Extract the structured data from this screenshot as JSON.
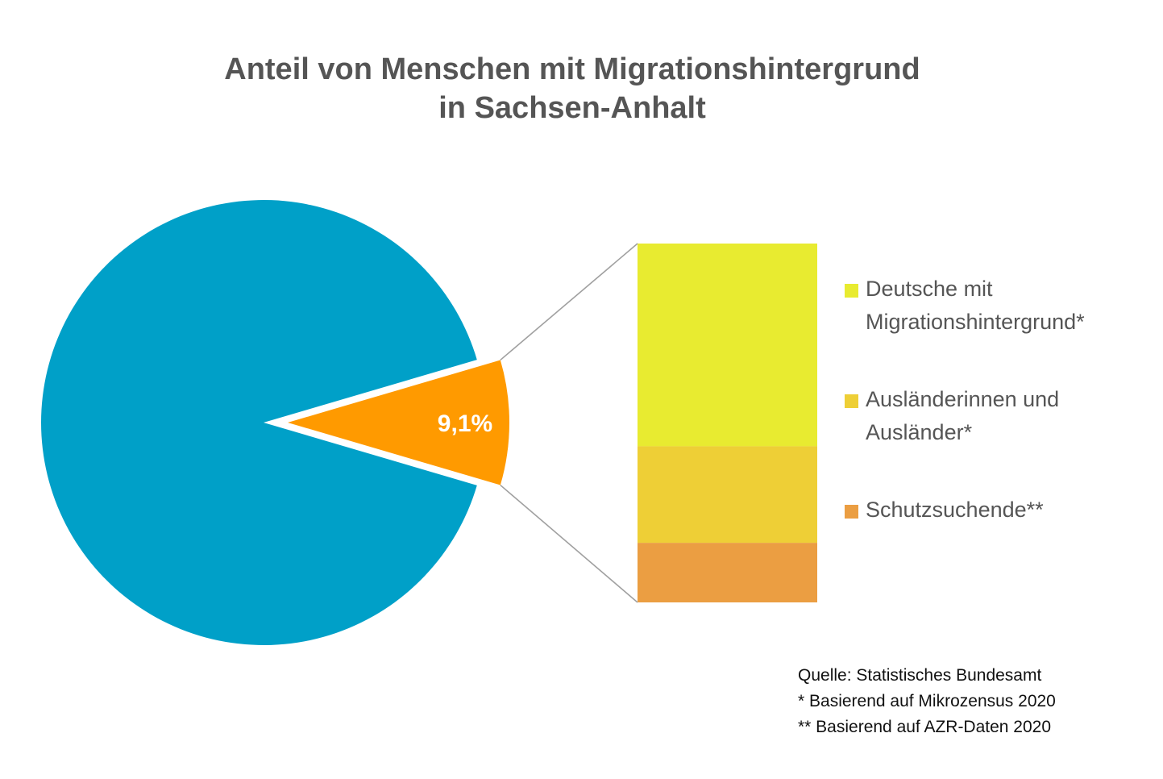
{
  "title": {
    "line1": "Anteil von Menschen mit Migrationshintergrund",
    "line2": "in Sachsen-Anhalt"
  },
  "chart_data": [
    {
      "type": "pie",
      "slices": [
        {
          "label": "",
          "value": 90.9,
          "color": "#00a0c8"
        },
        {
          "label": "9,1%",
          "value": 9.1,
          "color": "#ff9a00",
          "exploded": true
        }
      ],
      "data_label_color": "#ffffff"
    },
    {
      "type": "bar",
      "stacked": true,
      "series": [
        {
          "name": "Deutsche mit Migrationshintergrund*",
          "value": 56.5,
          "color": "#e8eb30"
        },
        {
          "name": "Ausländerinnen und Ausländer*",
          "value": 26.9,
          "color": "#eecf36"
        },
        {
          "name": "Schutzsuchende**",
          "value": 16.6,
          "color": "#eb9e42"
        }
      ],
      "legend": "right"
    }
  ],
  "legend": {
    "items": [
      {
        "line1": "Deutsche mit",
        "line2": "Migrationshintergrund*",
        "color": "#e8eb30"
      },
      {
        "line1": "Ausländerinnen und",
        "line2": "Ausländer*",
        "color": "#eecf36"
      },
      {
        "line1": "Schutzsuchende**",
        "line2": "",
        "color": "#eb9e42"
      }
    ]
  },
  "source": {
    "line1": "Quelle: Statistisches Bundesamt",
    "line2": "* Basierend auf Mikrozensus 2020",
    "line3": "** Basierend auf AZR-Daten 2020"
  },
  "colors": {
    "text": "#555555",
    "connector": "#a0a0a0"
  }
}
